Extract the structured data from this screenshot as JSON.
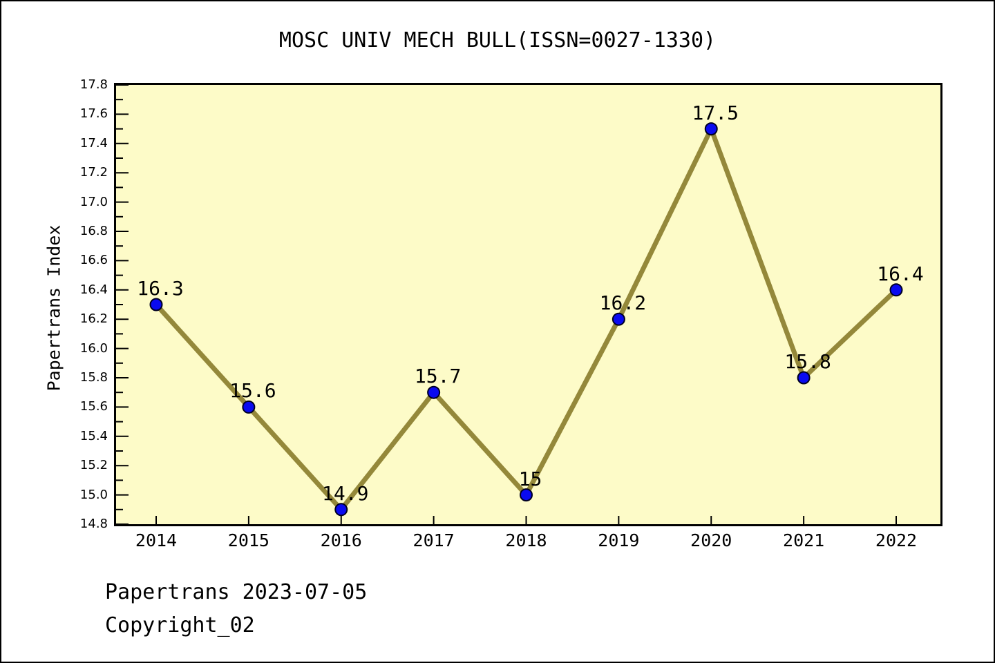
{
  "title": "MOSC UNIV MECH BULL(ISSN=0027-1330)",
  "footer": {
    "line1": "Papertrans 2023-07-05",
    "line2": "Copyright_02"
  },
  "chart_data": {
    "type": "line",
    "title": "MOSC UNIV MECH BULL(ISSN=0027-1330)",
    "xlabel": "",
    "ylabel": "Papertrans Index",
    "categories": [
      "2014",
      "2015",
      "2016",
      "2017",
      "2018",
      "2019",
      "2020",
      "2021",
      "2022"
    ],
    "values": [
      16.3,
      15.6,
      14.9,
      15.7,
      15.0,
      16.2,
      17.5,
      15.8,
      16.4
    ],
    "point_labels": [
      "16.3",
      "15.6",
      "14.9",
      "15.7",
      "15",
      "16.2",
      "17.5",
      "15.8",
      "16.4"
    ],
    "ylim": [
      14.8,
      17.8
    ],
    "ytick_major_step": 0.2,
    "ytick_minor_step": 0.1,
    "grid": false,
    "legend": "none",
    "colors": {
      "plot_background": "#FDFBC8",
      "line": "#94883A",
      "marker_fill": "#0A0AF0",
      "marker_edge": "#000022",
      "axis": "#000000",
      "text": "#000000"
    }
  }
}
